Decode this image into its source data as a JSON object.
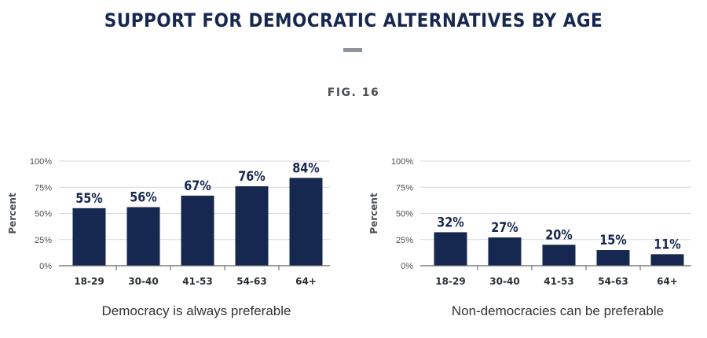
{
  "header": {
    "title": "SUPPORT FOR DEMOCRATIC ALTERNATIVES BY AGE",
    "figure_label": "FIG. 16"
  },
  "colors": {
    "bar": "#16284f",
    "grid": "#d6d9dc",
    "axis": "#5c6166",
    "title": "#16284f"
  },
  "chart_data": [
    {
      "type": "bar",
      "title": "Democracy is always preferable",
      "ylabel": "Percent",
      "xlabel": "",
      "categories": [
        "18-29",
        "30-40",
        "41-53",
        "54-63",
        "64+"
      ],
      "values": [
        55,
        56,
        67,
        76,
        84
      ],
      "data_labels": [
        "55%",
        "56%",
        "67%",
        "76%",
        "84%"
      ],
      "ylim": [
        0,
        100
      ],
      "yticks": [
        "0%",
        "25%",
        "50%",
        "75%",
        "100%"
      ],
      "grid": true
    },
    {
      "type": "bar",
      "title": "Non-democracies can be preferable",
      "ylabel": "Percent",
      "xlabel": "",
      "categories": [
        "18-29",
        "30-40",
        "41-53",
        "54-63",
        "64+"
      ],
      "values": [
        32,
        27,
        20,
        15,
        11
      ],
      "data_labels": [
        "32%",
        "27%",
        "20%",
        "15%",
        "11%"
      ],
      "ylim": [
        0,
        100
      ],
      "yticks": [
        "0%",
        "25%",
        "50%",
        "75%",
        "100%"
      ],
      "grid": true
    }
  ]
}
